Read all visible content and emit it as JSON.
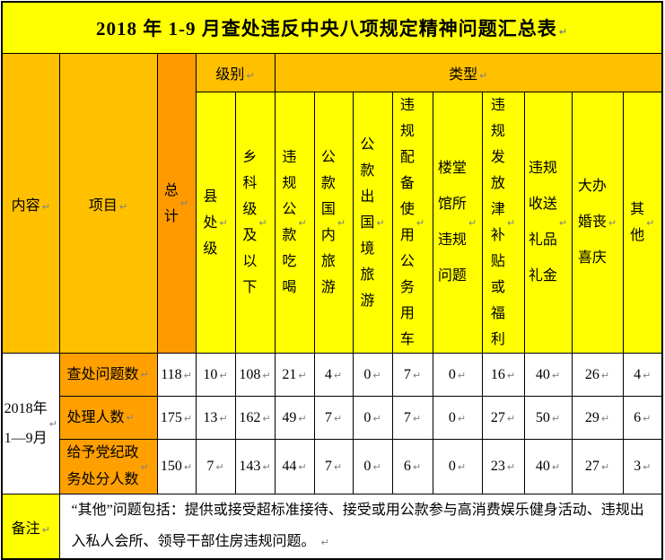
{
  "title": "2018 年 1-9 月查处违反中央八项规定精神问题汇总表",
  "colors": {
    "title_bg": "#FFFF00",
    "group_header_gold": "#FFC000",
    "total_column_orange": "#FF9900",
    "row_label_orange": "#FFA000",
    "leaf_header_yellow": "#FFFF00",
    "remark_label_yellow": "#FFFF00",
    "data_cell_white": "#FFFFFF",
    "border": "#000000",
    "paragraph_mark_gray": "#808080"
  },
  "header": {
    "content_label": "内容",
    "project_label": "项目",
    "total_label": "总\n计",
    "level_group_label": "级别",
    "type_group_label": "类型",
    "leaf_columns": [
      {
        "label": "县\n处\n级"
      },
      {
        "label": "乡\n科\n级\n及\n以\n下"
      },
      {
        "label": "违\n规\n公\n款\n吃\n喝"
      },
      {
        "label": "公\n款\n国\n内\n旅\n游"
      },
      {
        "label": "公\n款\n出\n国\n境\n旅\n游"
      },
      {
        "label": "违\n规\n配\n备\n使\n用\n公\n务\n用\n车"
      },
      {
        "label": "楼堂\n馆所\n违规\n问题"
      },
      {
        "label": "违\n规\n发\n放\n津\n补\n贴\n或\n福\n利"
      },
      {
        "label": "违规\n收送\n礼品\n礼金"
      },
      {
        "label": "大办\n婚丧\n喜庆"
      },
      {
        "label": "其\n他"
      }
    ]
  },
  "body": {
    "period_label": "2018年\n1—9月",
    "rows": [
      {
        "label": "查处问题数",
        "values": [
          118,
          10,
          108,
          21,
          4,
          0,
          7,
          0,
          16,
          40,
          26,
          4
        ]
      },
      {
        "label": "处理人数",
        "values": [
          175,
          13,
          162,
          49,
          7,
          0,
          7,
          0,
          27,
          50,
          29,
          6
        ]
      },
      {
        "label": "给予党纪政\n务处分人数",
        "values": [
          150,
          7,
          143,
          44,
          7,
          0,
          6,
          0,
          23,
          40,
          27,
          3
        ]
      }
    ]
  },
  "remark": {
    "label": "备注",
    "text": "“其他”问题包括：提供或接受超标准接待、接受或用公款参与高消费娱乐健身活动、违规出入私人会所、领导干部住房违规问题。"
  },
  "chart_data": {
    "type": "table",
    "title": "2018 年 1-9 月查处违反中央八项规定精神问题汇总表",
    "period": "2018年1—9月",
    "columns": [
      "总计",
      "县处级",
      "乡科级及以下",
      "违规公款吃喝",
      "公款国内旅游",
      "公款出国境旅游",
      "违规配备使用公务用车",
      "楼堂馆所违规问题",
      "违规发放津补贴或福利",
      "违规收送礼品礼金",
      "大办婚丧喜庆",
      "其他"
    ],
    "rows": [
      {
        "name": "查处问题数",
        "values": [
          118,
          10,
          108,
          21,
          4,
          0,
          7,
          0,
          16,
          40,
          26,
          4
        ]
      },
      {
        "name": "处理人数",
        "values": [
          175,
          13,
          162,
          49,
          7,
          0,
          7,
          0,
          27,
          50,
          29,
          6
        ]
      },
      {
        "name": "给予党纪政务处分人数",
        "values": [
          150,
          7,
          143,
          44,
          7,
          0,
          6,
          0,
          23,
          40,
          27,
          3
        ]
      }
    ]
  }
}
